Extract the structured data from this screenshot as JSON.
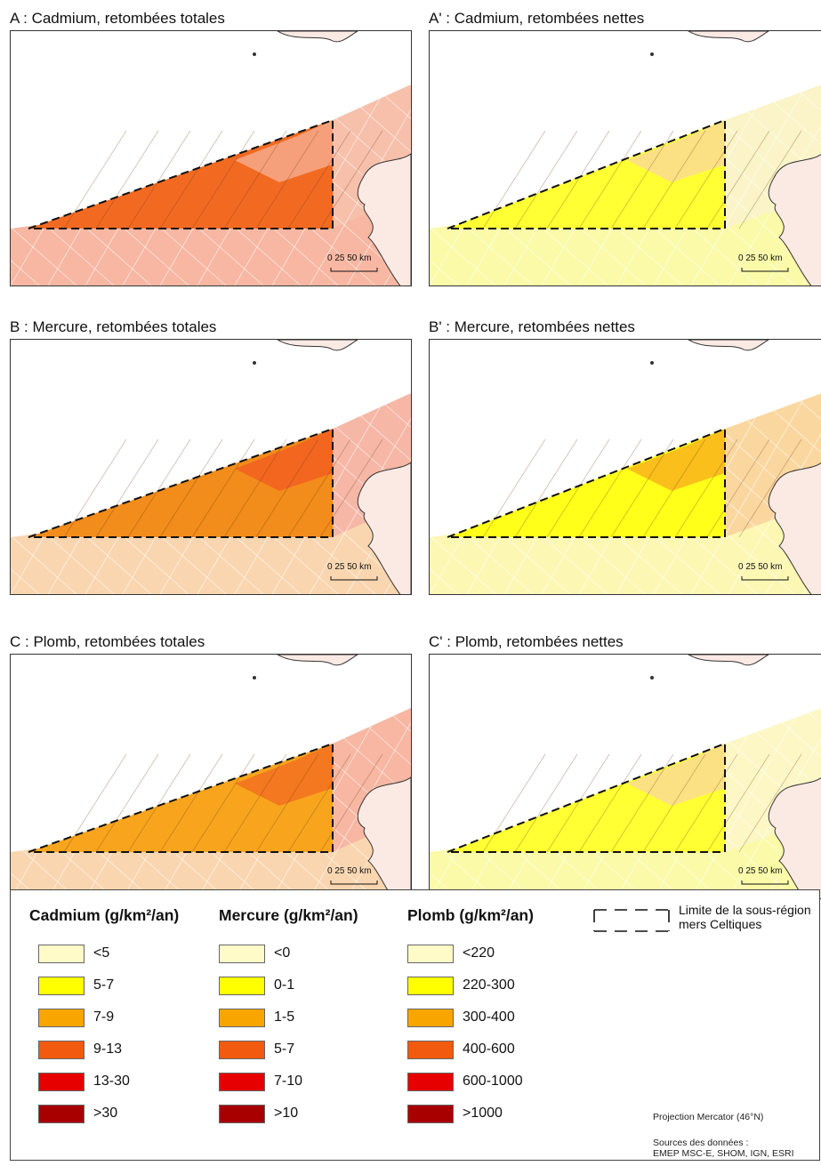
{
  "panels": [
    {
      "id": "A",
      "title": "A : Cadmium, retombées totales",
      "scale": "0  25  50  km",
      "sea": "#f7b7a2",
      "band": "#f7c0ab",
      "triangle": "#f26a21",
      "grid": "#f7b39a"
    },
    {
      "id": "A2",
      "title": "A' : Cadmium, retombées nettes",
      "scale": "0  25 50  km",
      "sea": "#fafaa8",
      "band": "#faf4c8",
      "triangle": "#ffff33",
      "grid": "#fbd7a0"
    },
    {
      "id": "B",
      "title": "B : Mercure, retombées totales",
      "scale": "0  25  50  km",
      "sea": "#f9d6b0",
      "band": "#f6b7a6",
      "triangle": "#f28c1a",
      "grid": "#f15a22"
    },
    {
      "id": "B2",
      "title": "B' : Mercure, retombées nettes",
      "scale": "0  25  50  km",
      "sea": "#fdf7b4",
      "band": "#fbd7a0",
      "triangle": "#ffff1a",
      "grid": "#f8a91c"
    },
    {
      "id": "C",
      "title": "C : Plomb, retombées totales",
      "scale": "0  25  50  km",
      "sea": "#f9d6b0",
      "band": "#f7b7a2",
      "triangle": "#f8a51d",
      "grid": "#f26a21"
    },
    {
      "id": "C2",
      "title": "C' : Plomb, retombées nettes",
      "scale": "0  25  50  km",
      "sea": "#fafaa8",
      "band": "#fdf7c6",
      "triangle": "#ffff33",
      "grid": "#fbd7a0"
    }
  ],
  "legend": {
    "cadmium": {
      "title": "Cadmium (g/km²/an)",
      "items": [
        "<5",
        "5-7",
        "7-9",
        "9-13",
        "13-30",
        ">30"
      ]
    },
    "mercure": {
      "title": "Mercure (g/km²/an)",
      "items": [
        "<0",
        "0-1",
        "1-5",
        "5-7",
        "7-10",
        ">10"
      ]
    },
    "plomb": {
      "title": "Plomb (g/km²/an)",
      "items": [
        "<220",
        "220-300",
        "300-400",
        "400-600",
        "600-1000",
        ">1000"
      ]
    },
    "classes_colors": [
      "#fffbc8",
      "#ffff00",
      "#f8a500",
      "#f25a10",
      "#e60000",
      "#a80000"
    ],
    "limit_line1": "Limite de la sous-région",
    "limit_line2": "mers Celtiques",
    "projection": "Projection Mercator (46°N)",
    "sources_line1": "Sources des données :",
    "sources_line2": "EMEP MSC-E, SHOM, IGN, ESRI"
  }
}
